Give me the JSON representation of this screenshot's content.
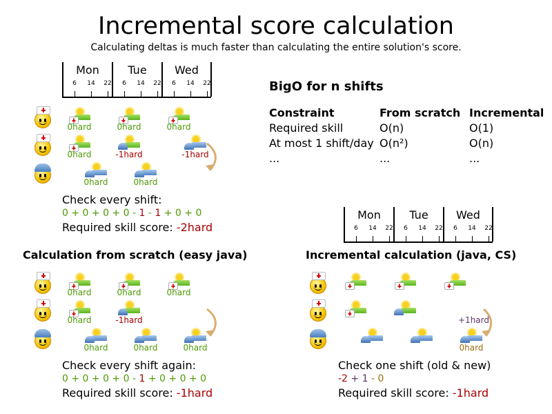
{
  "title": "Incremental score calculation",
  "subtitle": "Calculating deltas is much faster than calculating the entire solution's score.",
  "timeline": {
    "days": [
      "Mon",
      "Tue",
      "Wed"
    ],
    "hours": [
      "6",
      "14",
      "22"
    ]
  },
  "bigo": {
    "title": "BigO for n shifts",
    "headers": [
      "Constraint",
      "From scratch",
      "Incremental"
    ],
    "rows": [
      [
        "Required skill",
        "O(n)",
        "O(1)"
      ],
      [
        "At most 1 shift/day",
        "O(n²)",
        "O(n)"
      ],
      [
        "...",
        "...",
        "..."
      ]
    ]
  },
  "colors": {
    "ok": "#4e9a06",
    "bad": "#a40000",
    "plus": "#5c3566",
    "neutral": "#a06a10",
    "arrow": "#d9ad70"
  },
  "panels": [
    {
      "heading": "",
      "employees": [
        "nurse",
        "nurse",
        "worker"
      ],
      "shifts": [
        {
          "row": 0,
          "day": 0,
          "hour": 6,
          "type": "nurse",
          "assignee": "nurse",
          "score": "0hard",
          "status": "ok"
        },
        {
          "row": 0,
          "day": 1,
          "hour": 6,
          "type": "nurse",
          "assignee": "nurse",
          "score": "0hard",
          "status": "ok"
        },
        {
          "row": 0,
          "day": 2,
          "hour": 6,
          "type": "nurse",
          "assignee": "nurse",
          "score": "0hard",
          "status": "ok"
        },
        {
          "row": 1,
          "day": 0,
          "hour": 6,
          "type": "nurse",
          "assignee": "nurse",
          "score": "0hard",
          "status": "ok"
        },
        {
          "row": 1,
          "day": 1,
          "hour": 6,
          "type": "nurse",
          "assignee": "worker",
          "score": "-1hard",
          "status": "bad"
        },
        {
          "row": 1,
          "day": 2,
          "hour": 14,
          "type": "general",
          "assignee": "worker",
          "score": "-1hard",
          "status": "bad"
        },
        {
          "row": 2,
          "day": 0,
          "hour": 14,
          "type": "general",
          "assignee": "worker",
          "score": "0hard",
          "status": "ok"
        },
        {
          "row": 2,
          "day": 1,
          "hour": 14,
          "type": "general",
          "assignee": "worker",
          "score": "0hard",
          "status": "ok"
        }
      ],
      "check": "Check every shift:",
      "sum": [
        [
          "0 + 0 + 0 + 0 - ",
          "ok"
        ],
        [
          "1",
          "bad"
        ],
        [
          " - ",
          "ok"
        ],
        [
          "1",
          "bad"
        ],
        [
          " + 0 + 0",
          "ok"
        ]
      ],
      "score_label": "Required skill score: ",
      "score": "-2hard"
    },
    {
      "heading": "Calculation from scratch (easy java)",
      "employees": [
        "nurse",
        "nurse",
        "worker"
      ],
      "shifts": [
        {
          "row": 0,
          "day": 0,
          "hour": 6,
          "type": "nurse",
          "assignee": "nurse",
          "score": "0hard",
          "status": "ok"
        },
        {
          "row": 0,
          "day": 1,
          "hour": 6,
          "type": "nurse",
          "assignee": "nurse",
          "score": "0hard",
          "status": "ok"
        },
        {
          "row": 0,
          "day": 2,
          "hour": 6,
          "type": "nurse",
          "assignee": "nurse",
          "score": "0hard",
          "status": "ok"
        },
        {
          "row": 1,
          "day": 0,
          "hour": 6,
          "type": "nurse",
          "assignee": "nurse",
          "score": "0hard",
          "status": "ok"
        },
        {
          "row": 1,
          "day": 1,
          "hour": 6,
          "type": "nurse",
          "assignee": "worker",
          "score": "-1hard",
          "status": "bad"
        },
        {
          "row": 2,
          "day": 0,
          "hour": 14,
          "type": "general",
          "assignee": "worker",
          "score": "0hard",
          "status": "ok"
        },
        {
          "row": 2,
          "day": 1,
          "hour": 14,
          "type": "general",
          "assignee": "worker",
          "score": "0hard",
          "status": "ok"
        },
        {
          "row": 2,
          "day": 2,
          "hour": 14,
          "type": "general",
          "assignee": "worker",
          "score": "0hard",
          "status": "ok"
        }
      ],
      "check": "Check every shift again:",
      "sum": [
        [
          "0 + 0 + 0 + 0 - ",
          "ok"
        ],
        [
          "1",
          "bad"
        ],
        [
          " + 0 + 0 + 0",
          "ok"
        ]
      ],
      "score_label": "Required skill score: ",
      "score": "-1hard"
    },
    {
      "heading": "Incremental calculation (java, CS)",
      "employees": [
        "nurse",
        "nurse",
        "worker"
      ],
      "shifts": [
        {
          "row": 0,
          "day": 0,
          "hour": 6,
          "type": "nurse",
          "assignee": "nurse",
          "score": "",
          "status": "ok"
        },
        {
          "row": 0,
          "day": 1,
          "hour": 6,
          "type": "nurse",
          "assignee": "nurse",
          "score": "",
          "status": "ok"
        },
        {
          "row": 0,
          "day": 2,
          "hour": 6,
          "type": "nurse",
          "assignee": "nurse",
          "score": "",
          "status": "ok"
        },
        {
          "row": 1,
          "day": 0,
          "hour": 6,
          "type": "nurse",
          "assignee": "nurse",
          "score": "",
          "status": "ok"
        },
        {
          "row": 1,
          "day": 1,
          "hour": 6,
          "type": "nurse",
          "assignee": "worker",
          "score": "",
          "status": "bad"
        },
        {
          "row": 2,
          "day": 0,
          "hour": 14,
          "type": "general",
          "assignee": "worker",
          "score": "",
          "status": "ok"
        },
        {
          "row": 2,
          "day": 1,
          "hour": 14,
          "type": "general",
          "assignee": "worker",
          "score": "",
          "status": "ok"
        },
        {
          "row": 2,
          "day": 2,
          "hour": 14,
          "type": "general",
          "assignee": "worker",
          "score": "0hard",
          "status": "neutral"
        }
      ],
      "delta": "+1hard",
      "check": "Check one shift (old & new)",
      "sum": [
        [
          "-2",
          "bad"
        ],
        [
          " + ",
          "plus"
        ],
        [
          "1",
          "plus"
        ],
        [
          " - ",
          "neutral"
        ],
        [
          "0",
          "neutral"
        ]
      ],
      "score_label": "Required skill score: ",
      "score": "-1hard"
    }
  ]
}
